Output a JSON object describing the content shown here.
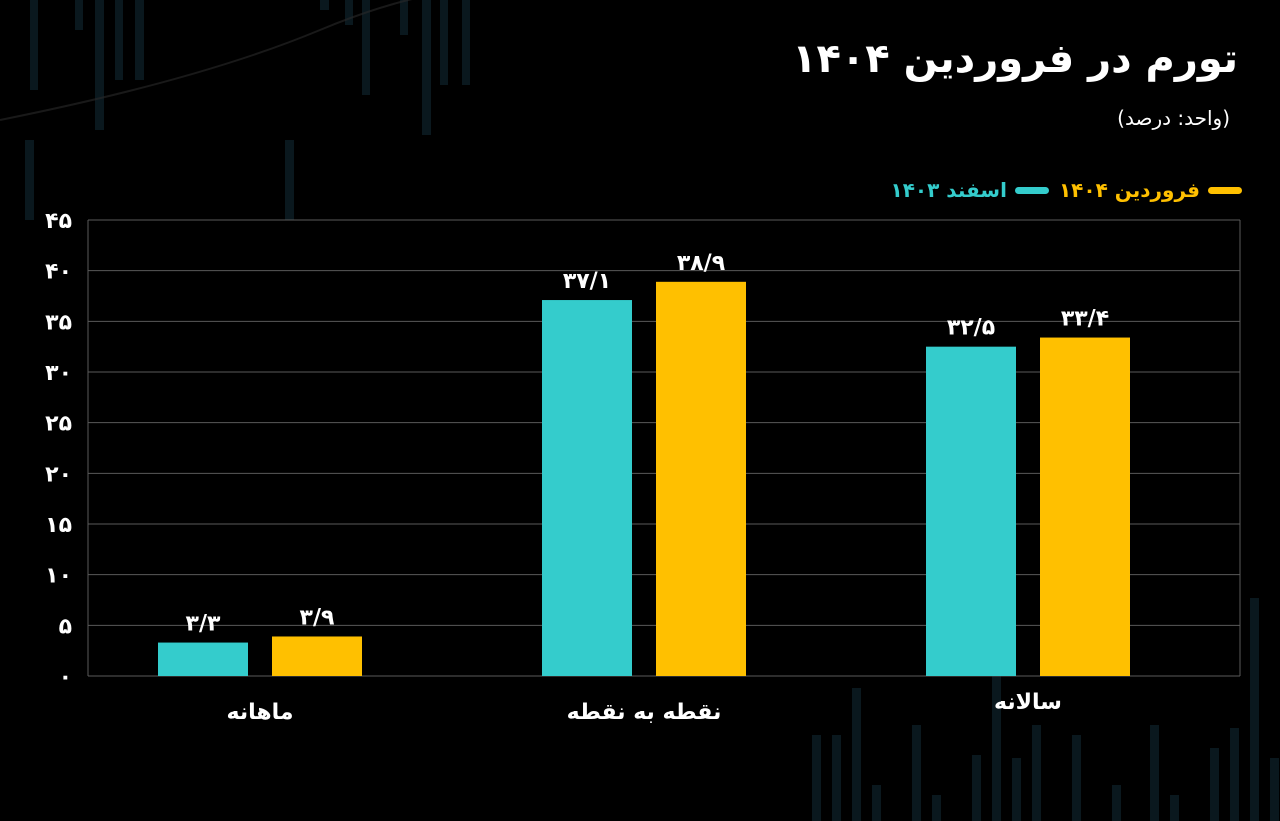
{
  "title": "تورم در فروردین ۱۴۰۴",
  "subtitle": "(واحد: درصد)",
  "colors": {
    "background": "#000000",
    "series_farvardin": "#FFC000",
    "series_esfand": "#34CCCC",
    "grid": "#5a5a5a",
    "text": "#ffffff"
  },
  "chart_data": {
    "type": "bar",
    "categories": [
      "ماهانه",
      "نقطه به نقطه",
      "سالانه"
    ],
    "series": [
      {
        "name": "اسفند ۱۴۰۳",
        "color": "#34CCCC",
        "values": [
          3.3,
          37.1,
          32.5
        ],
        "labels": [
          "۳/۳",
          "۳۷/۱",
          "۳۲/۵"
        ]
      },
      {
        "name": "فروردین ۱۴۰۴",
        "color": "#FFC000",
        "values": [
          3.9,
          38.9,
          33.4
        ],
        "labels": [
          "۳/۹",
          "۳۸/۹",
          "۳۳/۴"
        ]
      }
    ],
    "ylim": [
      0,
      45
    ],
    "yticks": [
      0,
      5,
      10,
      15,
      20,
      25,
      30,
      35,
      40,
      45
    ],
    "ytick_labels": [
      "۰",
      "۵",
      "۱۰",
      "۱۵",
      "۲۰",
      "۲۵",
      "۳۰",
      "۳۵",
      "۴۰",
      "۴۵"
    ],
    "grid": true,
    "legend_position": "top-right"
  }
}
